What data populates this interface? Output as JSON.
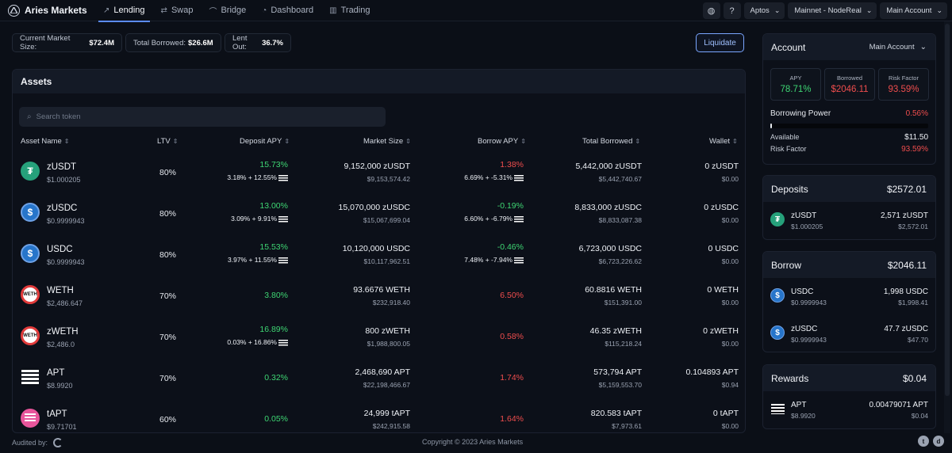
{
  "brand": "Aries Markets",
  "nav": [
    {
      "label": "Lending",
      "icon": "trend-icon",
      "active": true
    },
    {
      "label": "Swap",
      "icon": "swap-icon"
    },
    {
      "label": "Bridge",
      "icon": "bridge-icon"
    },
    {
      "label": "Dashboard",
      "icon": "dashboard-icon"
    },
    {
      "label": "Trading",
      "icon": "trading-icon"
    }
  ],
  "topbar": {
    "network": "Aptos",
    "node": "Mainnet - NodeReal",
    "account": "Main Account"
  },
  "stats": {
    "market_size_label": "Current Market Size:",
    "market_size": "$72.4M",
    "borrowed_label": "Total Borrowed:",
    "borrowed": "$26.6M",
    "lent_label": "Lent Out:",
    "lent": "36.7%"
  },
  "liquidate": "Liquidate",
  "assets": {
    "title": "Assets",
    "search_placeholder": "Search token",
    "columns": {
      "asset": "Asset Name",
      "ltv": "LTV",
      "deposit_apy": "Deposit APY",
      "market_size": "Market Size",
      "borrow_apy": "Borrow APY",
      "total_borrowed": "Total Borrowed",
      "wallet": "Wallet"
    },
    "rows": [
      {
        "name": "zUSDT",
        "price": "$1.000205",
        "ltv": "80%",
        "dep": "15.73%",
        "dep_sub": "3.18% + 12.55%",
        "mkt": "9,152,000 zUSDT",
        "mkt_sub": "$9,153,574.42",
        "bor": "1.38%",
        "bor_sub": "6.69% + -5.31%",
        "tb": "5,442,000 zUSDT",
        "tb_sub": "$5,442,740.67",
        "wal": "0 zUSDT",
        "wal_sub": "$0.00"
      },
      {
        "name": "zUSDC",
        "price": "$0.9999943",
        "ltv": "80%",
        "dep": "13.00%",
        "dep_sub": "3.09% + 9.91%",
        "mkt": "15,070,000 zUSDC",
        "mkt_sub": "$15,067,699.04",
        "bor": "-0.19%",
        "bor_sub": "6.60% + -6.79%",
        "tb": "8,833,000 zUSDC",
        "tb_sub": "$8,833,087.38",
        "wal": "0 zUSDC",
        "wal_sub": "$0.00"
      },
      {
        "name": "USDC",
        "price": "$0.9999943",
        "ltv": "80%",
        "dep": "15.53%",
        "dep_sub": "3.97% + 11.55%",
        "mkt": "10,120,000 USDC",
        "mkt_sub": "$10,117,962.51",
        "bor": "-0.46%",
        "bor_sub": "7.48% + -7.94%",
        "tb": "6,723,000 USDC",
        "tb_sub": "$6,723,226.62",
        "wal": "0 USDC",
        "wal_sub": "$0.00"
      },
      {
        "name": "WETH",
        "price": "$2,486.647",
        "ltv": "70%",
        "dep": "3.80%",
        "dep_sub": "",
        "mkt": "93.6676 WETH",
        "mkt_sub": "$232,918.40",
        "bor": "6.50%",
        "bor_sub": "",
        "tb": "60.8816 WETH",
        "tb_sub": "$151,391.00",
        "wal": "0 WETH",
        "wal_sub": "$0.00"
      },
      {
        "name": "zWETH",
        "price": "$2,486.0",
        "ltv": "70%",
        "dep": "16.89%",
        "dep_sub": "0.03% + 16.86%",
        "mkt": "800 zWETH",
        "mkt_sub": "$1,988,800.05",
        "bor": "0.58%",
        "bor_sub": "",
        "tb": "46.35 zWETH",
        "tb_sub": "$115,218.24",
        "wal": "0 zWETH",
        "wal_sub": "$0.00"
      },
      {
        "name": "APT",
        "price": "$8.9920",
        "ltv": "70%",
        "dep": "0.32%",
        "dep_sub": "",
        "mkt": "2,468,690 APT",
        "mkt_sub": "$22,198,466.67",
        "bor": "1.74%",
        "bor_sub": "",
        "tb": "573,794 APT",
        "tb_sub": "$5,159,553.70",
        "wal": "0.104893 APT",
        "wal_sub": "$0.94"
      },
      {
        "name": "tAPT",
        "price": "$9.71701",
        "ltv": "60%",
        "dep": "0.05%",
        "dep_sub": "",
        "mkt": "24,999 tAPT",
        "mkt_sub": "$242,915.58",
        "bor": "1.64%",
        "bor_sub": "",
        "tb": "820.583 tAPT",
        "tb_sub": "$7,973.61",
        "wal": "0 tAPT",
        "wal_sub": "$0.00"
      }
    ]
  },
  "account": {
    "title": "Account",
    "selector": "Main Account",
    "apy_label": "APY",
    "apy": "78.71%",
    "borrowed_label": "Borrowed",
    "borrowed": "$2046.11",
    "risk_label": "Risk Factor",
    "risk": "93.59%",
    "bp_label": "Borrowing Power",
    "bp": "0.56%",
    "bp_fraction": 0.0056,
    "available_label": "Available",
    "available": "$11.50",
    "risk_factor_label": "Risk Factor",
    "risk_factor": "93.59%"
  },
  "deposits": {
    "title": "Deposits",
    "total": "$2572.01",
    "items": [
      {
        "name": "zUSDT",
        "price": "$1.000205",
        "amount": "2,571 zUSDT",
        "value": "$2,572.01"
      }
    ]
  },
  "borrow": {
    "title": "Borrow",
    "total": "$2046.11",
    "items": [
      {
        "name": "USDC",
        "price": "$0.9999943",
        "amount": "1,998 USDC",
        "value": "$1,998.41"
      },
      {
        "name": "zUSDC",
        "price": "$0.9999943",
        "amount": "47.7 zUSDC",
        "value": "$47.70"
      }
    ]
  },
  "rewards": {
    "title": "Rewards",
    "total": "$0.04",
    "items": [
      {
        "name": "APT",
        "price": "$8.9920",
        "amount": "0.00479071 APT",
        "value": "$0.04"
      }
    ]
  },
  "footer": {
    "audited": "Audited by:",
    "copyright": "Copyright © 2023 Aries Markets"
  },
  "colors": {
    "accent": "#5b8cff",
    "positive": "#3ed673",
    "negative": "#ef4d4d",
    "tether": "#26a17b",
    "usdc": "#2775ca"
  }
}
